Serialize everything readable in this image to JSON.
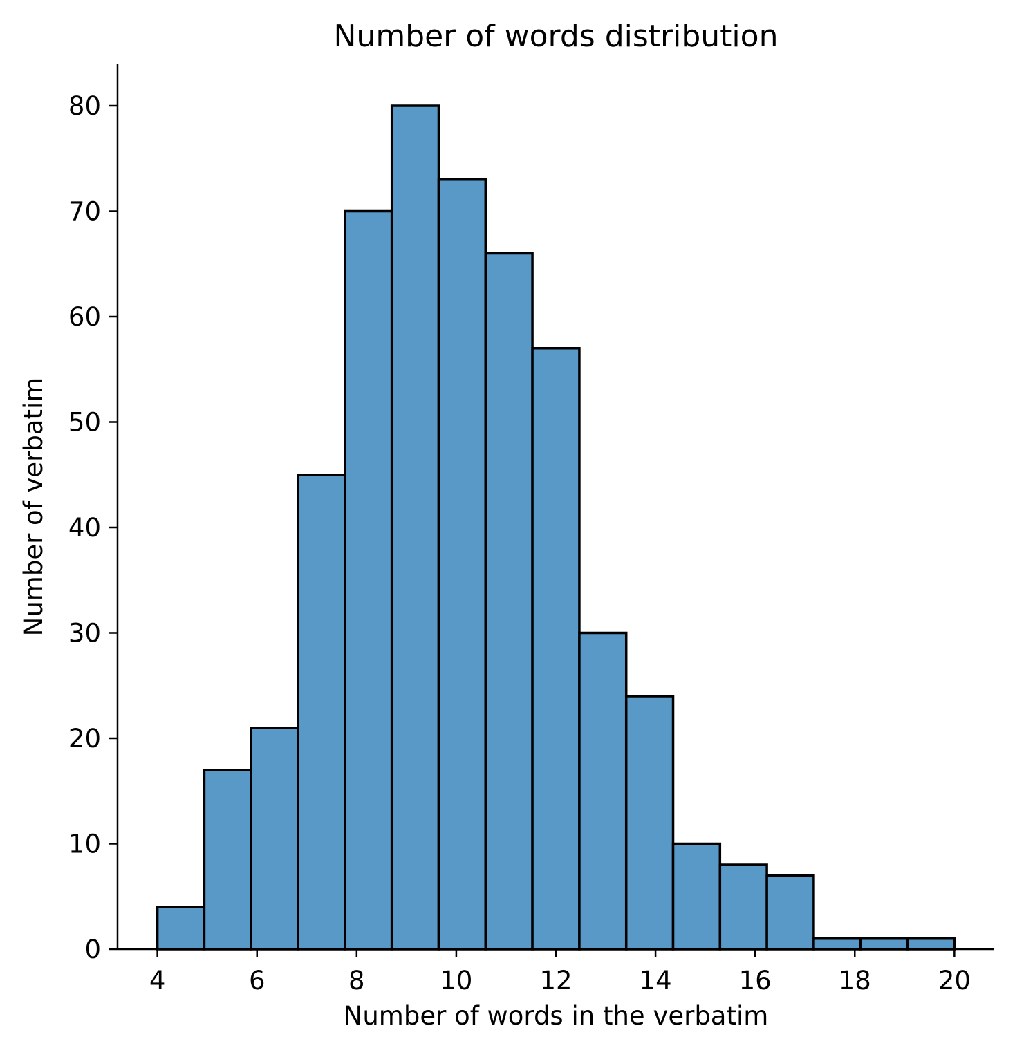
{
  "chart_data": {
    "type": "bar",
    "title": "Number of words distribution",
    "xlabel": "Number of words in the verbatim",
    "ylabel": "Number of verbatim",
    "bin_edges": [
      4.0,
      4.941,
      5.882,
      6.824,
      7.765,
      8.706,
      9.647,
      10.588,
      11.529,
      12.471,
      13.412,
      14.353,
      15.294,
      16.235,
      17.176,
      18.118,
      19.059,
      20.0
    ],
    "values": [
      4,
      17,
      21,
      45,
      70,
      80,
      73,
      66,
      57,
      30,
      24,
      10,
      8,
      7,
      1,
      1,
      1
    ],
    "xlim": [
      3.2,
      20.8
    ],
    "ylim": [
      0,
      84
    ],
    "xticks": [
      4,
      6,
      8,
      10,
      12,
      14,
      16,
      18,
      20
    ],
    "yticks": [
      0,
      10,
      20,
      30,
      40,
      50,
      60,
      70,
      80
    ],
    "bar_color": "#5899c7",
    "edge_color": "#000000",
    "grid": false,
    "legend": "none"
  }
}
